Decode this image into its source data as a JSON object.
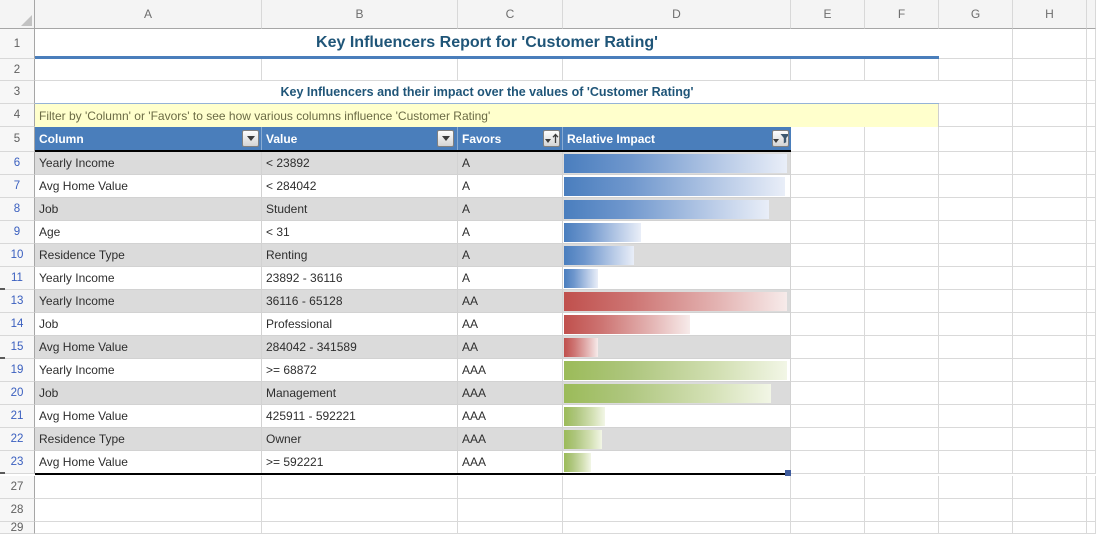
{
  "columns_strip": [
    "A",
    "B",
    "C",
    "D",
    "E",
    "F",
    "G",
    "H"
  ],
  "row_strip": [
    "1",
    "2",
    "3",
    "4",
    "5",
    "6",
    "7",
    "8",
    "9",
    "10",
    "11",
    "13",
    "14",
    "15",
    "19",
    "20",
    "21",
    "22",
    "23",
    "27",
    "28",
    "29"
  ],
  "filtered_row_numbers": [
    "6",
    "7",
    "8",
    "9",
    "10",
    "11",
    "13",
    "14",
    "15",
    "19",
    "20",
    "21",
    "22",
    "23"
  ],
  "title": "Key Influencers Report for 'Customer Rating'",
  "subtitle": "Key Influencers and their impact over the values of 'Customer Rating'",
  "filter_note": "Filter by 'Column' or 'Favors' to see how various columns influence 'Customer Rating'",
  "table": {
    "headers": [
      {
        "label": "Column",
        "icon": "filter-dropdown"
      },
      {
        "label": "Value",
        "icon": "filter-dropdown"
      },
      {
        "label": "Favors",
        "icon": "sort-ascending-dropdown"
      },
      {
        "label": "Relative Impact",
        "icon": "filter-applied-funnel"
      }
    ],
    "rows": [
      {
        "row": "6",
        "column": "Yearly Income",
        "value": "< 23892",
        "favors": "A",
        "impact_pct": 99,
        "bar": "blue",
        "shaded": true
      },
      {
        "row": "7",
        "column": "Avg Home Value",
        "value": "< 284042",
        "favors": "A",
        "impact_pct": 98,
        "bar": "blue",
        "shaded": false
      },
      {
        "row": "8",
        "column": "Job",
        "value": "Student",
        "favors": "A",
        "impact_pct": 91,
        "bar": "blue",
        "shaded": true
      },
      {
        "row": "9",
        "column": "Age",
        "value": "< 31",
        "favors": "A",
        "impact_pct": 34,
        "bar": "blue",
        "shaded": false
      },
      {
        "row": "10",
        "column": "Residence Type",
        "value": "Renting",
        "favors": "A",
        "impact_pct": 31,
        "bar": "blue",
        "shaded": true
      },
      {
        "row": "11",
        "column": "Yearly Income",
        "value": "23892 - 36116",
        "favors": "A",
        "impact_pct": 15,
        "bar": "blue",
        "shaded": false
      },
      {
        "row": "13",
        "column": "Yearly Income",
        "value": "36116 - 65128",
        "favors": "AA",
        "impact_pct": 99,
        "bar": "red",
        "shaded": true
      },
      {
        "row": "14",
        "column": "Job",
        "value": "Professional",
        "favors": "AA",
        "impact_pct": 56,
        "bar": "red",
        "shaded": false
      },
      {
        "row": "15",
        "column": "Avg Home Value",
        "value": "284042 - 341589",
        "favors": "AA",
        "impact_pct": 15,
        "bar": "red",
        "shaded": true
      },
      {
        "row": "19",
        "column": "Yearly Income",
        "value": ">= 68872",
        "favors": "AAA",
        "impact_pct": 99,
        "bar": "green",
        "shaded": false
      },
      {
        "row": "20",
        "column": "Job",
        "value": "Management",
        "favors": "AAA",
        "impact_pct": 92,
        "bar": "green",
        "shaded": true
      },
      {
        "row": "21",
        "column": "Avg Home Value",
        "value": "425911 - 592221",
        "favors": "AAA",
        "impact_pct": 18,
        "bar": "green",
        "shaded": false
      },
      {
        "row": "22",
        "column": "Residence Type",
        "value": "Owner",
        "favors": "AAA",
        "impact_pct": 17,
        "bar": "green",
        "shaded": true
      },
      {
        "row": "23",
        "column": "Avg Home Value",
        "value": ">= 592221",
        "favors": "AAA",
        "impact_pct": 12,
        "bar": "green",
        "shaded": false
      }
    ]
  },
  "colors": {
    "table_header_bg": "#4A7EBB",
    "title_text": "#1F5578",
    "note_bg": "#FFFFCC",
    "note_text": "#6B6B45",
    "bar_blue": "#4A7EBE",
    "bar_red": "#C0504D",
    "bar_green": "#9BBB59",
    "shaded_row": "#DBDBDB",
    "filtered_row_number": "#3A5FBF"
  }
}
